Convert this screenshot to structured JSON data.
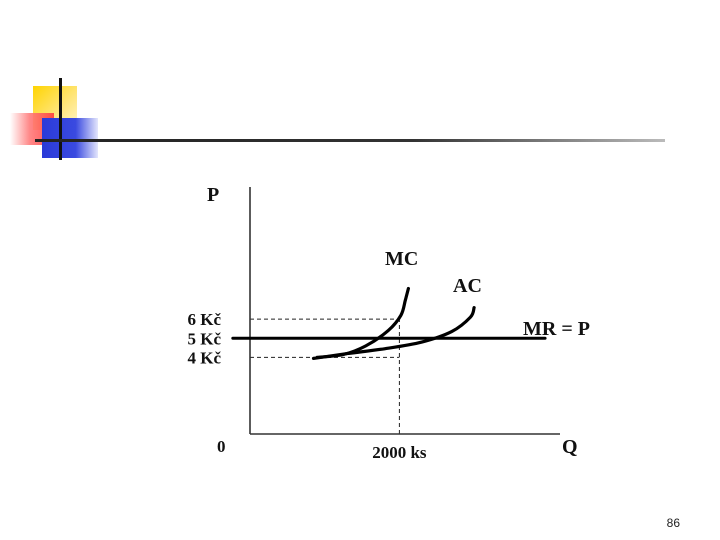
{
  "page_number": "86",
  "chart_data": {
    "type": "line",
    "xlabel": "Q",
    "ylabel": "P",
    "origin_label": "0",
    "x_ticks": [
      {
        "value": 2000,
        "label": "2000 ks"
      }
    ],
    "y_ticks": [
      {
        "value": 6,
        "label": "6 Kč"
      },
      {
        "value": 5,
        "label": "5 Kč"
      },
      {
        "value": 4,
        "label": "4 Kč"
      }
    ],
    "xlim": [
      0,
      4150
    ],
    "ylim": [
      0,
      12.9
    ],
    "series": [
      {
        "name": "MC",
        "color": "#000000",
        "points": [
          [
            900,
            4.0
          ],
          [
            1250,
            4.15
          ],
          [
            1550,
            4.6
          ],
          [
            1850,
            5.4
          ],
          [
            2020,
            6.2
          ],
          [
            2080,
            7.0
          ],
          [
            2120,
            7.6
          ]
        ]
      },
      {
        "name": "AC",
        "color": "#000000",
        "points": [
          [
            850,
            3.95
          ],
          [
            1300,
            4.2
          ],
          [
            1800,
            4.45
          ],
          [
            2300,
            4.8
          ],
          [
            2700,
            5.35
          ],
          [
            2950,
            6.1
          ],
          [
            3000,
            6.6
          ]
        ]
      },
      {
        "name": "MR = P",
        "color": "#000000",
        "points": [
          [
            -230,
            5
          ],
          [
            3950,
            5
          ]
        ]
      }
    ],
    "reference_lines": [
      {
        "orientation": "horizontal",
        "y": 6,
        "x_to": 2000,
        "style": "dashed"
      },
      {
        "orientation": "horizontal",
        "y": 4,
        "x_to": 2000,
        "style": "dashed"
      },
      {
        "orientation": "vertical",
        "x": 2000,
        "y_to": 6,
        "style": "dashed"
      }
    ]
  }
}
